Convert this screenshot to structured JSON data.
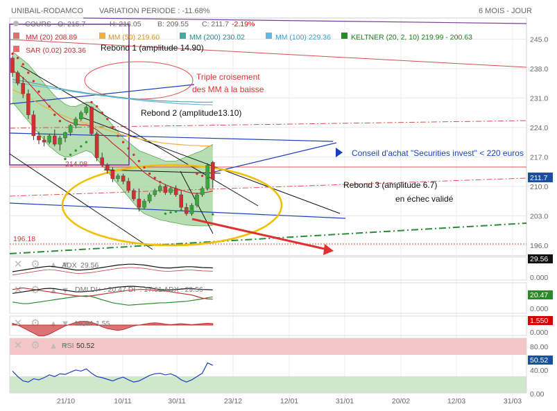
{
  "header": {
    "symbol": "UNIBAIL-RODAMCO",
    "variation_label": "VARIATION PERIODE : -11.68%",
    "period": "6 MOIS - JOUR"
  },
  "legend": {
    "cours": "COURS",
    "open": "O: 215.7",
    "high": "H: 216.05",
    "low": "B: 209.55",
    "close": "C: 211.7",
    "change": "-2.19%",
    "mm20": "MM (20) 208.89",
    "mm50": "MM (50) 219.60",
    "mm200": "MM (200) 230.02",
    "mm100": "MM (100) 229.36",
    "keltner": "KELTNER (20, 2, 10) 219.99 - 200.63",
    "sar": "SAR (0.02) 203.36"
  },
  "annotations": {
    "rebond1": "Rebond 1 (amplitude 14.90)",
    "triple": "Triple croisement",
    "triple2": "des MM à la baisse",
    "rebond2": "Rebond 2 (amplitude13.10)",
    "conseil": "Conseil d'achat \"Securities invest\" < 220 euros",
    "rebond3": "Rebond 3 (amplitude 6.7)",
    "echec": "en échec validé",
    "lvl214": "214.08",
    "lvl196": "196.18",
    "current": "211.7"
  },
  "indicators": {
    "adx": {
      "label": "ADX",
      "value": "29.56",
      "badge": "29.56",
      "axis": "0.000"
    },
    "dmi": {
      "label": "DMI DI+ : 20.47 DI- : 17.61 ADX : 29.56",
      "badge": "20.47",
      "axis": "0.000"
    },
    "mom": {
      "label": "MOM",
      "value": "1.55",
      "badge": "1.550",
      "axis": "0.000"
    },
    "rsi": {
      "label": "RSI",
      "value": "50.52",
      "badge": "50.52",
      "ticks": [
        "80.00",
        "40.00",
        "0.00"
      ]
    }
  },
  "colors": {
    "price_badge": "#1a4fa0",
    "mom_badge": "#d40000",
    "dmi_badge": "#2a8a2a",
    "rsi_badge": "#1a4fa0",
    "adx_badge": "#111111",
    "keltner_fill": "#9fd39a",
    "rsi_band": "#f4c6c6",
    "rsi_low_band": "#cfe8cb",
    "ellipse": "#f0c000"
  },
  "chart_data": {
    "type": "candlestick",
    "x_ticks": [
      "21/10",
      "10/11",
      "30/11",
      "23/12",
      "12/01",
      "31/01",
      "20/02",
      "12/03",
      "31/03"
    ],
    "y_ticks": [
      245.0,
      238.0,
      231.0,
      224.0,
      217.0,
      210.0,
      203.0,
      196.0
    ],
    "ylim": [
      193.5,
      250
    ],
    "x_span": [
      0,
      140
    ],
    "ohlc": [
      [
        240.5,
        241.0,
        236.0,
        237.0
      ],
      [
        237.0,
        237.5,
        234.0,
        234.5
      ],
      [
        234.5,
        236.0,
        231.0,
        232.0
      ],
      [
        232.0,
        233.0,
        226.0,
        227.0
      ],
      [
        227.0,
        228.0,
        221.0,
        222.0
      ],
      [
        222.0,
        223.0,
        220.0,
        221.0
      ],
      [
        221.0,
        222.0,
        219.5,
        220.5
      ],
      [
        220.5,
        222.5,
        220.0,
        222.0
      ],
      [
        222.0,
        223.5,
        219.5,
        220.0
      ],
      [
        220.0,
        222.0,
        218.5,
        221.5
      ],
      [
        221.5,
        223.0,
        220.5,
        222.8
      ],
      [
        222.8,
        224.8,
        222.0,
        224.5
      ],
      [
        224.5,
        226.5,
        223.8,
        226.0
      ],
      [
        226.0,
        228.0,
        225.5,
        227.5
      ],
      [
        227.5,
        229.2,
        227.0,
        228.8
      ],
      [
        228.8,
        229.0,
        222.0,
        222.5
      ],
      [
        222.5,
        223.0,
        216.0,
        216.8
      ],
      [
        216.8,
        218.0,
        214.5,
        215.0
      ],
      [
        215.0,
        215.5,
        213.0,
        213.8
      ],
      [
        213.8,
        214.5,
        211.0,
        211.8
      ],
      [
        211.8,
        213.0,
        211.0,
        212.5
      ],
      [
        212.5,
        213.0,
        210.5,
        211.2
      ],
      [
        211.2,
        212.0,
        208.5,
        209.0
      ],
      [
        209.0,
        209.5,
        206.5,
        207.0
      ],
      [
        207.0,
        209.5,
        204.0,
        205.0
      ],
      [
        205.0,
        207.0,
        204.5,
        206.5
      ],
      [
        206.5,
        208.5,
        206.0,
        208.0
      ],
      [
        208.0,
        209.5,
        207.5,
        209.0
      ],
      [
        209.0,
        210.5,
        208.5,
        210.0
      ],
      [
        210.0,
        210.5,
        208.0,
        208.5
      ],
      [
        208.5,
        210.0,
        208.0,
        209.5
      ],
      [
        209.5,
        210.2,
        207.5,
        208.0
      ],
      [
        208.0,
        209.0,
        204.5,
        205.0
      ],
      [
        205.0,
        206.0,
        203.0,
        203.5
      ],
      [
        203.5,
        206.0,
        203.0,
        205.5
      ],
      [
        205.5,
        208.5,
        205.0,
        208.0
      ],
      [
        208.0,
        210.0,
        207.5,
        209.5
      ],
      [
        209.5,
        215.5,
        209.0,
        215.0
      ],
      [
        215.7,
        216.05,
        209.55,
        211.7
      ]
    ],
    "mm20": [
      237.5,
      236.8,
      235.8,
      234.6,
      233.2,
      231.8,
      230.4,
      229.0,
      227.8,
      226.7,
      225.8,
      225.2,
      224.8,
      224.6,
      224.6,
      224.2,
      223.4,
      222.4,
      221.4,
      220.2,
      219.2,
      218.2,
      217.0,
      215.8,
      214.5,
      213.3,
      212.4,
      211.6,
      211.0,
      210.4,
      209.9,
      209.5,
      209.1,
      208.7,
      208.4,
      208.3,
      208.4,
      208.6,
      208.9
    ],
    "mm50": [
      233.0,
      232.4,
      231.8,
      231.1,
      230.4,
      229.7,
      229.0,
      228.3,
      227.7,
      227.1,
      226.6,
      226.1,
      225.7,
      225.3,
      225.0,
      224.6,
      224.2,
      223.8,
      223.4,
      223.0,
      222.6,
      222.2,
      221.9,
      221.6,
      221.3,
      221.0,
      220.8,
      220.6,
      220.4,
      220.2,
      220.1,
      220.0,
      219.9,
      219.8,
      219.7,
      219.7,
      219.6,
      219.6,
      219.6
    ],
    "mm100": [
      234.8,
      234.6,
      234.4,
      234.2,
      234.0,
      233.8,
      233.6,
      233.4,
      233.2,
      233.0,
      232.8,
      232.6,
      232.4,
      232.2,
      232.0,
      231.9,
      231.7,
      231.5,
      231.4,
      231.2,
      231.1,
      230.9,
      230.8,
      230.6,
      230.5,
      230.3,
      230.2,
      230.1,
      230.0,
      229.9,
      229.8,
      229.7,
      229.6,
      229.6,
      229.5,
      229.5,
      229.4,
      229.4,
      229.36
    ],
    "mm200": [
      235.4,
      235.2,
      235.0,
      234.8,
      234.5,
      234.3,
      234.0,
      233.8,
      233.5,
      233.3,
      233.0,
      232.8,
      232.6,
      232.4,
      232.2,
      232.0,
      231.9,
      231.7,
      231.5,
      231.4,
      231.2,
      231.1,
      230.9,
      230.8,
      230.7,
      230.6,
      230.5,
      230.4,
      230.3,
      230.3,
      230.2,
      230.2,
      230.1,
      230.1,
      230.1,
      230.0,
      230.0,
      230.0,
      230.02
    ],
    "keltner_upper": [
      242.0,
      241.0,
      240.0,
      239.0,
      237.5,
      236.0,
      234.5,
      233.0,
      231.5,
      230.5,
      229.5,
      229.0,
      229.0,
      229.5,
      230.0,
      230.0,
      229.0,
      227.5,
      226.0,
      224.5,
      223.0,
      221.5,
      220.5,
      219.5,
      218.5,
      218.0,
      217.5,
      217.0,
      216.5,
      216.0,
      216.0,
      216.0,
      216.5,
      217.0,
      217.5,
      218.0,
      218.5,
      219.3,
      219.99
    ],
    "keltner_lower": [
      230.0,
      228.5,
      227.0,
      225.5,
      224.0,
      222.5,
      221.0,
      219.5,
      218.5,
      217.5,
      217.0,
      217.0,
      217.5,
      218.0,
      218.5,
      218.0,
      216.5,
      215.0,
      213.5,
      212.0,
      210.5,
      209.0,
      207.5,
      206.0,
      204.5,
      203.5,
      203.0,
      202.5,
      202.0,
      201.8,
      201.5,
      201.3,
      201.0,
      200.8,
      200.7,
      200.6,
      200.6,
      200.6,
      200.63
    ],
    "sar": [
      [
        1,
        241.5
      ],
      [
        2,
        240.5
      ],
      [
        3,
        239.0
      ],
      [
        4,
        237.0
      ],
      [
        5,
        235.0
      ],
      [
        6,
        232.5
      ],
      [
        7,
        230.5
      ],
      [
        8,
        229.0
      ],
      [
        9,
        227.0
      ],
      [
        10,
        225.5
      ],
      [
        11,
        216.5
      ],
      [
        12,
        217.5
      ],
      [
        13,
        218.5
      ],
      [
        14,
        219.5
      ],
      [
        15,
        220.5
      ],
      [
        16,
        230.0
      ],
      [
        17,
        229.0
      ],
      [
        18,
        227.5
      ],
      [
        19,
        226.0
      ],
      [
        20,
        224.0
      ],
      [
        21,
        222.0
      ],
      [
        22,
        220.5
      ],
      [
        23,
        219.0
      ],
      [
        24,
        217.5
      ],
      [
        25,
        216.0
      ],
      [
        26,
        214.5
      ],
      [
        27,
        213.0
      ],
      [
        28,
        212.0
      ],
      [
        29,
        211.0
      ],
      [
        30,
        203.5
      ],
      [
        31,
        203.8
      ],
      [
        32,
        204.0
      ],
      [
        33,
        204.3
      ],
      [
        34,
        204.5
      ],
      [
        35,
        204.8
      ],
      [
        36,
        213.0
      ],
      [
        37,
        212.5
      ],
      [
        38,
        212.0
      ],
      [
        39,
        203.36
      ]
    ],
    "adx": {
      "values": [
        25,
        26,
        27,
        28,
        29,
        30,
        31,
        31.5,
        31,
        30,
        29,
        28,
        27,
        27,
        27.5,
        28,
        29,
        30,
        31,
        32,
        33,
        33.5,
        34,
        34,
        33.5,
        33,
        32,
        31,
        30,
        29.5,
        29.5,
        30,
        30.5,
        31,
        31,
        30.5,
        30,
        29.8,
        29.56
      ]
    },
    "dmi_plus": [
      14,
      13,
      12,
      12,
      13,
      14,
      15,
      16,
      17,
      18,
      19,
      20,
      21,
      21.5,
      22,
      21,
      19,
      17,
      15,
      13,
      12,
      11,
      10,
      10.5,
      11,
      11.5,
      12,
      12.5,
      13,
      13,
      13.5,
      14,
      14.5,
      15,
      16,
      17,
      18,
      19.5,
      20.47
    ],
    "dmi_minus": [
      30,
      31,
      32,
      31,
      30,
      29,
      28,
      27,
      26,
      25,
      24,
      23,
      22,
      21.5,
      21,
      22,
      23,
      24,
      25,
      26,
      27,
      28,
      29,
      29.5,
      30,
      30,
      29.5,
      29,
      28.5,
      28,
      27,
      26,
      25,
      24,
      23,
      21,
      19,
      18,
      17.61
    ],
    "mom": [
      2,
      0,
      -3,
      -6,
      -9,
      -12,
      -12,
      -10,
      -7,
      -4,
      -1,
      1,
      3,
      4,
      4,
      3,
      1,
      -2,
      -4,
      -5,
      -6,
      -5,
      -3,
      -1,
      0,
      1,
      2,
      2.5,
      2,
      1,
      0.5,
      1,
      1.5,
      1,
      0.5,
      1,
      1.5,
      2,
      1.55
    ],
    "rsi": [
      40,
      30,
      22,
      20,
      26,
      24,
      28,
      33,
      30,
      35,
      34,
      38,
      42,
      40,
      44,
      36,
      30,
      28,
      25,
      22,
      26,
      29,
      24,
      20,
      22,
      27,
      32,
      35,
      36,
      33,
      35,
      31,
      24,
      20,
      24,
      30,
      36,
      55,
      50.52
    ]
  }
}
